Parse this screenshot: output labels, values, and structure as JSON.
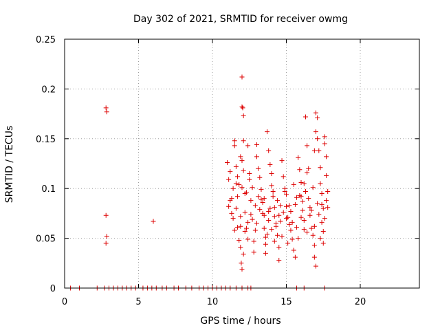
{
  "chart_data": {
    "type": "scatter",
    "title": "Day 302 of 2021, SRMTID for receiver owmg",
    "xlabel": "GPS time / hours",
    "ylabel": "SRMTID / TECUs",
    "xlim": [
      0,
      24
    ],
    "ylim": [
      0,
      0.25
    ],
    "xticks": [
      0,
      5,
      10,
      15,
      20
    ],
    "yticks": [
      0,
      0.05,
      0.1,
      0.15,
      0.2,
      0.25
    ],
    "xtick_labels": [
      "0",
      "5",
      "10",
      "15",
      "20"
    ],
    "ytick_labels": [
      "0",
      "0.05",
      "0.1",
      "0.15",
      "0.2",
      "0.25"
    ],
    "grid": true,
    "marker": "+",
    "color": "#dd0000",
    "series": [
      {
        "name": "SRMTID",
        "points": [
          [
            2.8,
            0.181
          ],
          [
            2.85,
            0.177
          ],
          [
            2.8,
            0.073
          ],
          [
            2.85,
            0.052
          ],
          [
            2.8,
            0.045
          ],
          [
            6.0,
            0.067
          ],
          [
            11.0,
            0.126
          ],
          [
            11.1,
            0.109
          ],
          [
            11.2,
            0.088
          ],
          [
            11.3,
            0.075
          ],
          [
            11.4,
            0.07
          ],
          [
            11.5,
            0.148
          ],
          [
            11.5,
            0.143
          ],
          [
            11.6,
            0.122
          ],
          [
            11.6,
            0.105
          ],
          [
            11.7,
            0.092
          ],
          [
            11.7,
            0.061
          ],
          [
            11.8,
            0.048
          ],
          [
            11.9,
            0.041
          ],
          [
            11.9,
            0.132
          ],
          [
            12.0,
            0.212
          ],
          [
            12.0,
            0.182
          ],
          [
            12.05,
            0.181
          ],
          [
            12.1,
            0.173
          ],
          [
            12.1,
            0.148
          ],
          [
            12.0,
            0.128
          ],
          [
            12.1,
            0.118
          ],
          [
            12.2,
            0.095
          ],
          [
            12.2,
            0.076
          ],
          [
            12.3,
            0.06
          ],
          [
            12.1,
            0.034
          ],
          [
            12.0,
            0.019
          ],
          [
            11.95,
            0.025
          ],
          [
            12.4,
            0.143
          ],
          [
            12.5,
            0.115
          ],
          [
            12.6,
            0.088
          ],
          [
            12.7,
            0.069
          ],
          [
            12.8,
            0.047
          ],
          [
            12.8,
            0.036
          ],
          [
            13.0,
            0.144
          ],
          [
            13.0,
            0.132
          ],
          [
            13.1,
            0.12
          ],
          [
            13.2,
            0.111
          ],
          [
            13.3,
            0.089
          ],
          [
            13.4,
            0.075
          ],
          [
            13.5,
            0.06
          ],
          [
            13.6,
            0.051
          ],
          [
            13.6,
            0.044
          ],
          [
            13.6,
            0.035
          ],
          [
            13.7,
            0.157
          ],
          [
            13.8,
            0.138
          ],
          [
            13.9,
            0.124
          ],
          [
            14.0,
            0.115
          ],
          [
            14.0,
            0.103
          ],
          [
            14.1,
            0.097
          ],
          [
            14.2,
            0.081
          ],
          [
            14.2,
            0.072
          ],
          [
            14.3,
            0.065
          ],
          [
            14.4,
            0.053
          ],
          [
            14.5,
            0.041
          ],
          [
            14.5,
            0.028
          ],
          [
            14.7,
            0.128
          ],
          [
            14.8,
            0.112
          ],
          [
            14.9,
            0.1
          ],
          [
            15.0,
            0.094
          ],
          [
            15.0,
            0.082
          ],
          [
            15.1,
            0.071
          ],
          [
            15.2,
            0.064
          ],
          [
            15.3,
            0.058
          ],
          [
            15.4,
            0.049
          ],
          [
            15.5,
            0.038
          ],
          [
            15.6,
            0.031
          ],
          [
            15.8,
            0.131
          ],
          [
            15.9,
            0.119
          ],
          [
            16.0,
            0.106
          ],
          [
            16.0,
            0.092
          ],
          [
            16.1,
            0.078
          ],
          [
            16.2,
            0.068
          ],
          [
            16.3,
            0.172
          ],
          [
            16.4,
            0.143
          ],
          [
            16.4,
            0.116
          ],
          [
            16.5,
            0.09
          ],
          [
            16.6,
            0.073
          ],
          [
            16.7,
            0.06
          ],
          [
            16.8,
            0.053
          ],
          [
            16.9,
            0.043
          ],
          [
            16.9,
            0.031
          ],
          [
            17.0,
            0.022
          ],
          [
            17.0,
            0.176
          ],
          [
            17.1,
            0.171
          ],
          [
            17.1,
            0.15
          ],
          [
            17.2,
            0.138
          ],
          [
            17.3,
            0.121
          ],
          [
            17.3,
            0.105
          ],
          [
            17.4,
            0.084
          ],
          [
            17.4,
            0.066
          ],
          [
            17.5,
            0.057
          ],
          [
            17.5,
            0.045
          ],
          [
            17.6,
            0.152
          ],
          [
            17.6,
            0.145
          ],
          [
            17.7,
            0.132
          ],
          [
            17.7,
            0.113
          ],
          [
            17.8,
            0.097
          ],
          [
            17.8,
            0.081
          ],
          [
            17.0,
            0.157
          ],
          [
            16.9,
            0.138
          ],
          [
            16.5,
            0.12
          ],
          [
            16.2,
            0.105
          ],
          [
            15.9,
            0.093
          ],
          [
            15.6,
            0.084
          ],
          [
            15.3,
            0.077
          ],
          [
            15.0,
            0.07
          ],
          [
            14.6,
            0.067
          ],
          [
            14.3,
            0.062
          ],
          [
            14.0,
            0.059
          ],
          [
            13.8,
            0.068
          ],
          [
            13.5,
            0.073
          ],
          [
            13.2,
            0.079
          ],
          [
            12.9,
            0.083
          ],
          [
            12.6,
            0.074
          ],
          [
            12.4,
            0.066
          ],
          [
            12.2,
            0.057
          ],
          [
            11.9,
            0.072
          ],
          [
            11.6,
            0.08
          ],
          [
            11.3,
            0.09
          ],
          [
            11.1,
            0.082
          ],
          [
            11.4,
            0.1
          ],
          [
            11.8,
            0.104
          ],
          [
            12.3,
            0.096
          ],
          [
            12.7,
            0.101
          ],
          [
            13.1,
            0.092
          ],
          [
            13.4,
            0.086
          ],
          [
            13.9,
            0.08
          ],
          [
            14.4,
            0.088
          ],
          [
            14.8,
            0.076
          ],
          [
            15.2,
            0.083
          ],
          [
            15.7,
            0.091
          ],
          [
            16.1,
            0.087
          ],
          [
            16.6,
            0.081
          ],
          [
            17.2,
            0.074
          ],
          [
            17.5,
            0.08
          ],
          [
            17.7,
            0.088
          ],
          [
            17.4,
            0.095
          ],
          [
            16.8,
            0.101
          ],
          [
            16.3,
            0.097
          ],
          [
            15.5,
            0.104
          ],
          [
            14.9,
            0.097
          ],
          [
            14.1,
            0.092
          ],
          [
            13.3,
            0.099
          ],
          [
            12.5,
            0.109
          ],
          [
            12.0,
            0.101
          ],
          [
            11.7,
            0.112
          ],
          [
            11.2,
            0.117
          ],
          [
            13.7,
            0.054
          ],
          [
            14.2,
            0.047
          ],
          [
            14.7,
            0.052
          ],
          [
            15.1,
            0.045
          ],
          [
            15.8,
            0.05
          ],
          [
            16.4,
            0.056
          ],
          [
            16.9,
            0.062
          ],
          [
            17.3,
            0.05
          ],
          [
            12.9,
            0.058
          ],
          [
            12.4,
            0.049
          ],
          [
            11.9,
            0.062
          ],
          [
            11.5,
            0.058
          ],
          [
            13.5,
            0.09
          ],
          [
            14.6,
            0.083
          ],
          [
            15.4,
            0.066
          ],
          [
            16.0,
            0.071
          ],
          [
            16.7,
            0.078
          ],
          [
            17.1,
            0.085
          ],
          [
            17.6,
            0.07
          ],
          [
            13.0,
            0.065
          ],
          [
            13.8,
            0.077
          ],
          [
            14.5,
            0.073
          ],
          [
            15.7,
            0.061
          ],
          [
            16.2,
            0.059
          ],
          [
            0.4,
            0
          ],
          [
            1.0,
            0
          ],
          [
            2.2,
            0
          ],
          [
            2.7,
            0
          ],
          [
            3.0,
            0
          ],
          [
            3.3,
            0
          ],
          [
            3.6,
            0
          ],
          [
            3.9,
            0
          ],
          [
            4.2,
            0
          ],
          [
            4.5,
            0
          ],
          [
            4.8,
            0
          ],
          [
            5.3,
            0
          ],
          [
            5.6,
            0
          ],
          [
            5.9,
            0
          ],
          [
            6.2,
            0
          ],
          [
            6.6,
            0
          ],
          [
            6.9,
            0
          ],
          [
            7.4,
            0
          ],
          [
            7.7,
            0
          ],
          [
            8.2,
            0
          ],
          [
            8.6,
            0
          ],
          [
            9.1,
            0
          ],
          [
            9.4,
            0
          ],
          [
            9.7,
            0
          ],
          [
            10.0,
            0
          ],
          [
            10.3,
            0
          ],
          [
            10.6,
            0
          ],
          [
            10.9,
            0
          ],
          [
            11.2,
            0
          ],
          [
            11.6,
            0
          ],
          [
            12.0,
            0
          ],
          [
            12.4,
            0
          ],
          [
            12.6,
            0
          ],
          [
            15.7,
            0
          ],
          [
            16.2,
            0
          ],
          [
            17.6,
            0
          ]
        ]
      }
    ]
  }
}
